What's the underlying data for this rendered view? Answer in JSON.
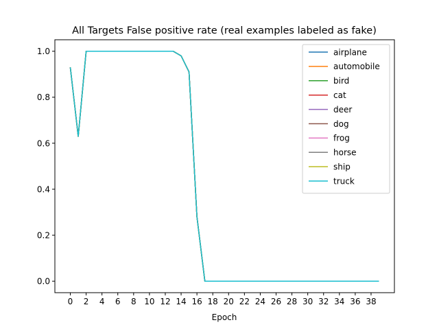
{
  "chart_data": {
    "type": "line",
    "title": "All Targets False positive rate (real examples labeled as fake)",
    "xlabel": "Epoch",
    "ylabel": "",
    "xlim": [
      -1.95,
      40.95
    ],
    "ylim": [
      -0.05,
      1.05
    ],
    "xticks": [
      0,
      2,
      4,
      6,
      8,
      10,
      12,
      14,
      16,
      18,
      20,
      22,
      24,
      26,
      28,
      30,
      32,
      34,
      36,
      38
    ],
    "yticks": [
      0.0,
      0.2,
      0.4,
      0.6,
      0.8,
      1.0
    ],
    "ytick_labels": [
      "0.0",
      "0.2",
      "0.4",
      "0.6",
      "0.8",
      "1.0"
    ],
    "grid": false,
    "legend_position": "top-right",
    "x": [
      0,
      1,
      2,
      3,
      4,
      5,
      6,
      7,
      8,
      9,
      10,
      11,
      12,
      13,
      14,
      15,
      16,
      17,
      18,
      19,
      20,
      21,
      22,
      23,
      24,
      25,
      26,
      27,
      28,
      29,
      30,
      31,
      32,
      33,
      34,
      35,
      36,
      37,
      38,
      39
    ],
    "series": [
      {
        "name": "airplane",
        "color": "#1f77b4",
        "values": [
          0.93,
          0.63,
          1.0,
          1.0,
          1.0,
          1.0,
          1.0,
          1.0,
          1.0,
          1.0,
          1.0,
          1.0,
          1.0,
          1.0,
          0.98,
          0.91,
          0.28,
          0.0,
          0.0,
          0.0,
          0.0,
          0.0,
          0.0,
          0.0,
          0.0,
          0.0,
          0.0,
          0.0,
          0.0,
          0.0,
          0.0,
          0.0,
          0.0,
          0.0,
          0.0,
          0.0,
          0.0,
          0.0,
          0.0,
          0.0
        ]
      },
      {
        "name": "automobile",
        "color": "#ff7f0e",
        "values": [
          0.93,
          0.63,
          1.0,
          1.0,
          1.0,
          1.0,
          1.0,
          1.0,
          1.0,
          1.0,
          1.0,
          1.0,
          1.0,
          1.0,
          0.98,
          0.91,
          0.28,
          0.0,
          0.0,
          0.0,
          0.0,
          0.0,
          0.0,
          0.0,
          0.0,
          0.0,
          0.0,
          0.0,
          0.0,
          0.0,
          0.0,
          0.0,
          0.0,
          0.0,
          0.0,
          0.0,
          0.0,
          0.0,
          0.0,
          0.0
        ]
      },
      {
        "name": "bird",
        "color": "#2ca02c",
        "values": [
          0.93,
          0.63,
          1.0,
          1.0,
          1.0,
          1.0,
          1.0,
          1.0,
          1.0,
          1.0,
          1.0,
          1.0,
          1.0,
          1.0,
          0.98,
          0.91,
          0.28,
          0.0,
          0.0,
          0.0,
          0.0,
          0.0,
          0.0,
          0.0,
          0.0,
          0.0,
          0.0,
          0.0,
          0.0,
          0.0,
          0.0,
          0.0,
          0.0,
          0.0,
          0.0,
          0.0,
          0.0,
          0.0,
          0.0,
          0.0
        ]
      },
      {
        "name": "cat",
        "color": "#d62728",
        "values": [
          0.93,
          0.63,
          1.0,
          1.0,
          1.0,
          1.0,
          1.0,
          1.0,
          1.0,
          1.0,
          1.0,
          1.0,
          1.0,
          1.0,
          0.98,
          0.91,
          0.28,
          0.0,
          0.0,
          0.0,
          0.0,
          0.0,
          0.0,
          0.0,
          0.0,
          0.0,
          0.0,
          0.0,
          0.0,
          0.0,
          0.0,
          0.0,
          0.0,
          0.0,
          0.0,
          0.0,
          0.0,
          0.0,
          0.0,
          0.0
        ]
      },
      {
        "name": "deer",
        "color": "#9467bd",
        "values": [
          0.93,
          0.63,
          1.0,
          1.0,
          1.0,
          1.0,
          1.0,
          1.0,
          1.0,
          1.0,
          1.0,
          1.0,
          1.0,
          1.0,
          0.98,
          0.91,
          0.28,
          0.0,
          0.0,
          0.0,
          0.0,
          0.0,
          0.0,
          0.0,
          0.0,
          0.0,
          0.0,
          0.0,
          0.0,
          0.0,
          0.0,
          0.0,
          0.0,
          0.0,
          0.0,
          0.0,
          0.0,
          0.0,
          0.0,
          0.0
        ]
      },
      {
        "name": "dog",
        "color": "#8c564b",
        "values": [
          0.93,
          0.63,
          1.0,
          1.0,
          1.0,
          1.0,
          1.0,
          1.0,
          1.0,
          1.0,
          1.0,
          1.0,
          1.0,
          1.0,
          0.98,
          0.91,
          0.28,
          0.0,
          0.0,
          0.0,
          0.0,
          0.0,
          0.0,
          0.0,
          0.0,
          0.0,
          0.0,
          0.0,
          0.0,
          0.0,
          0.0,
          0.0,
          0.0,
          0.0,
          0.0,
          0.0,
          0.0,
          0.0,
          0.0,
          0.0
        ]
      },
      {
        "name": "frog",
        "color": "#e377c2",
        "values": [
          0.93,
          0.63,
          1.0,
          1.0,
          1.0,
          1.0,
          1.0,
          1.0,
          1.0,
          1.0,
          1.0,
          1.0,
          1.0,
          1.0,
          0.98,
          0.91,
          0.28,
          0.0,
          0.0,
          0.0,
          0.0,
          0.0,
          0.0,
          0.0,
          0.0,
          0.0,
          0.0,
          0.0,
          0.0,
          0.0,
          0.0,
          0.0,
          0.0,
          0.0,
          0.0,
          0.0,
          0.0,
          0.0,
          0.0,
          0.0
        ]
      },
      {
        "name": "horse",
        "color": "#7f7f7f",
        "values": [
          0.93,
          0.63,
          1.0,
          1.0,
          1.0,
          1.0,
          1.0,
          1.0,
          1.0,
          1.0,
          1.0,
          1.0,
          1.0,
          1.0,
          0.98,
          0.91,
          0.28,
          0.0,
          0.0,
          0.0,
          0.0,
          0.0,
          0.0,
          0.0,
          0.0,
          0.0,
          0.0,
          0.0,
          0.0,
          0.0,
          0.0,
          0.0,
          0.0,
          0.0,
          0.0,
          0.0,
          0.0,
          0.0,
          0.0,
          0.0
        ]
      },
      {
        "name": "ship",
        "color": "#bcbd22",
        "values": [
          0.93,
          0.63,
          1.0,
          1.0,
          1.0,
          1.0,
          1.0,
          1.0,
          1.0,
          1.0,
          1.0,
          1.0,
          1.0,
          1.0,
          0.98,
          0.91,
          0.28,
          0.0,
          0.0,
          0.0,
          0.0,
          0.0,
          0.0,
          0.0,
          0.0,
          0.0,
          0.0,
          0.0,
          0.0,
          0.0,
          0.0,
          0.0,
          0.0,
          0.0,
          0.0,
          0.0,
          0.0,
          0.0,
          0.0,
          0.0
        ]
      },
      {
        "name": "truck",
        "color": "#17becf",
        "values": [
          0.93,
          0.63,
          1.0,
          1.0,
          1.0,
          1.0,
          1.0,
          1.0,
          1.0,
          1.0,
          1.0,
          1.0,
          1.0,
          1.0,
          0.98,
          0.91,
          0.28,
          0.0,
          0.0,
          0.0,
          0.0,
          0.0,
          0.0,
          0.0,
          0.0,
          0.0,
          0.0,
          0.0,
          0.0,
          0.0,
          0.0,
          0.0,
          0.0,
          0.0,
          0.0,
          0.0,
          0.0,
          0.0,
          0.0,
          0.0
        ]
      }
    ]
  }
}
